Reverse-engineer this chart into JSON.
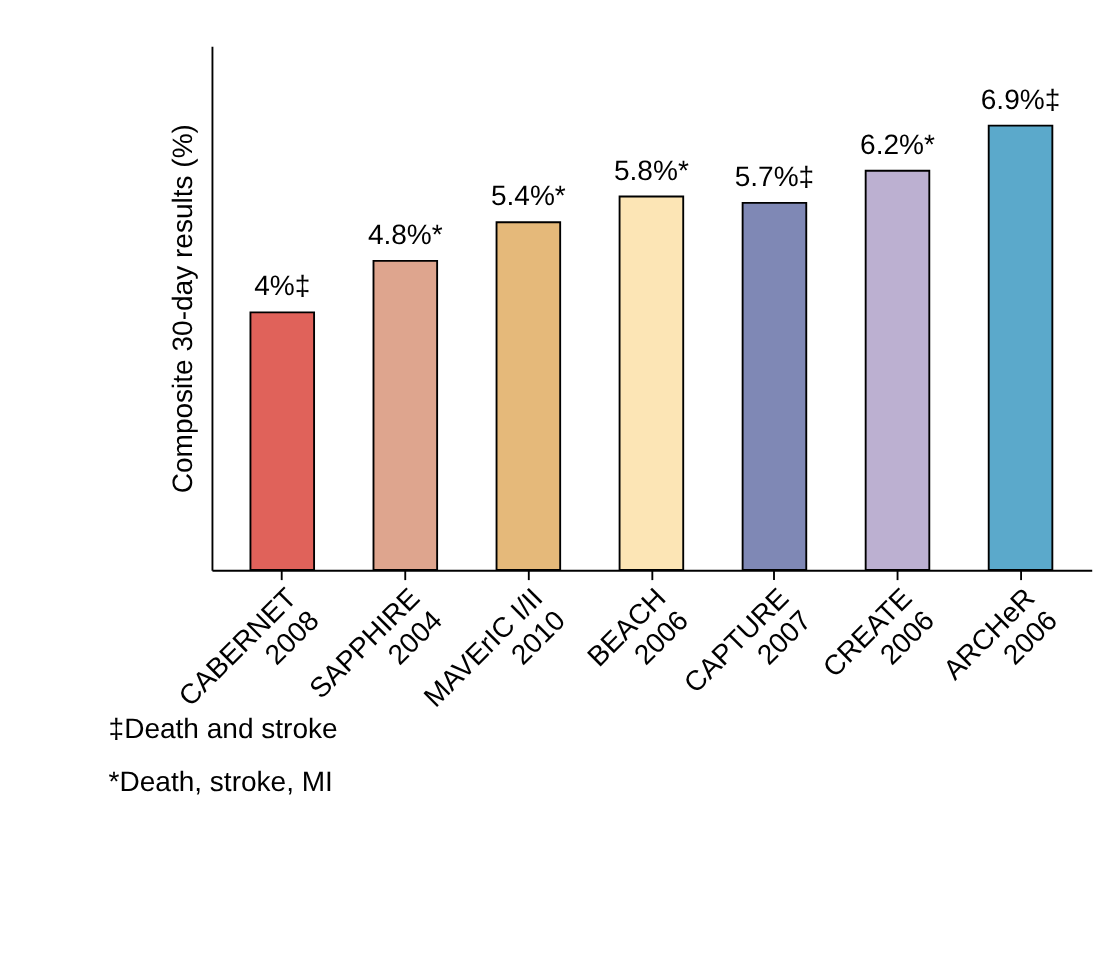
{
  "chart_data": {
    "type": "bar",
    "ylabel": "Composite 30-day results (%)",
    "categories": [
      "CABERNET\n2008",
      "SAPPHIRE\n2004",
      "MAVErIC I/II\n2010",
      "BEACH\n2006",
      "CAPTURE\n2007",
      "CREATE\n2006",
      "ARCHeR\n2006"
    ],
    "values": [
      4,
      4.8,
      5.4,
      5.8,
      5.7,
      6.2,
      6.9
    ],
    "value_labels": [
      "4%‡",
      "4.8%*",
      "5.4%*",
      "5.8%*",
      "5.7%‡",
      "6.2%*",
      "6.9%‡"
    ],
    "colors": [
      "#e0625a",
      "#dea58e",
      "#e5b97a",
      "#fce5b5",
      "#7f88b5",
      "#bcb0d1",
      "#5ba9cb"
    ],
    "annotations": [
      "‡Death and stroke",
      "*Death, stroke, MI"
    ],
    "grid": false
  }
}
